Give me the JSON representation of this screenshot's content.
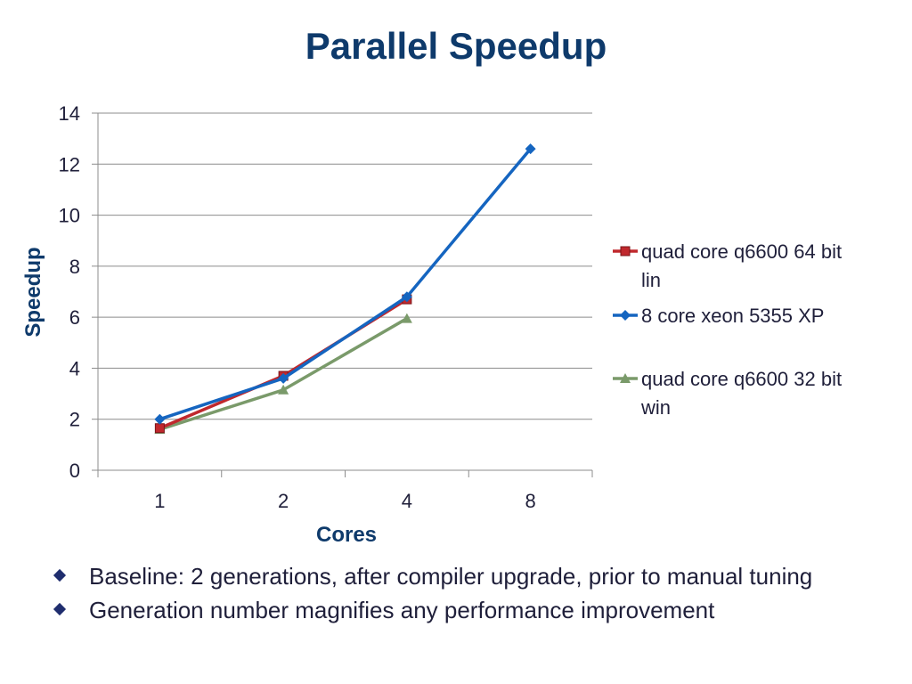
{
  "slide": {
    "title": "Parallel Speedup",
    "bullets": [
      "Baseline:  2 generations, after compiler upgrade, prior to manual tuning",
      "Generation number magnifies any performance improvement"
    ]
  },
  "chart_data": {
    "type": "line",
    "categories": [
      "1",
      "2",
      "4",
      "8"
    ],
    "xlabel": "Cores",
    "ylabel": "Speedup",
    "ylim": [
      0,
      14
    ],
    "yticks": [
      "0",
      "2",
      "4",
      "6",
      "8",
      "10",
      "12",
      "14"
    ],
    "grid": true,
    "legend_position": "right",
    "series": [
      {
        "name": "quad core q6600 64 bit lin",
        "color": "#c0282d",
        "marker": "square",
        "values": [
          1.65,
          3.7,
          6.7,
          null
        ]
      },
      {
        "name": "8 core xeon 5355 XP",
        "color": "#1565c0",
        "marker": "diamond",
        "values": [
          2.0,
          3.6,
          6.8,
          12.6
        ]
      },
      {
        "name": "quad core q6600 32 bit win",
        "color": "#7a9a6a",
        "marker": "triangle",
        "values": [
          1.6,
          3.15,
          5.95,
          null
        ]
      }
    ]
  }
}
